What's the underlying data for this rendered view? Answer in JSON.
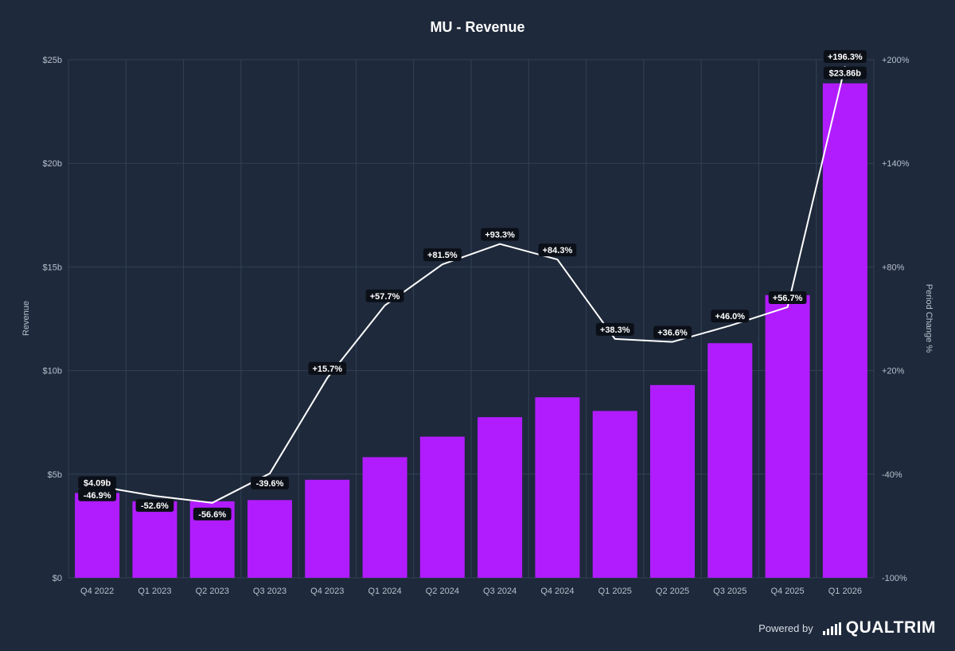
{
  "chart_data": {
    "type": "bar",
    "title": "MU - Revenue",
    "ylabel": "Revenue",
    "y2label": "Period Change %",
    "categories": [
      "Q4 2022",
      "Q1 2023",
      "Q2 2023",
      "Q3 2023",
      "Q4 2023",
      "Q1 2024",
      "Q2 2024",
      "Q3 2024",
      "Q4 2024",
      "Q1 2025",
      "Q2 2025",
      "Q3 2025",
      "Q4 2025",
      "Q1 2026"
    ],
    "series": [
      {
        "type": "bar",
        "color": "#b11cff",
        "unit": "billions USD",
        "values": [
          4.09,
          3.69,
          3.69,
          3.75,
          4.73,
          5.82,
          6.81,
          7.75,
          8.71,
          8.05,
          9.3,
          11.32,
          13.64,
          23.86
        ],
        "data_labels": {
          "0": "$4.09b",
          "13": "$23.86b"
        }
      },
      {
        "type": "line",
        "axis": "right",
        "color": "#ffffff",
        "unit": "percent",
        "values": [
          -46.9,
          -52.6,
          -56.6,
          -39.6,
          15.7,
          57.7,
          81.5,
          93.3,
          84.3,
          38.3,
          36.6,
          46.0,
          56.7,
          196.3
        ],
        "data_labels": [
          "-46.9%",
          "-52.6%",
          "-56.6%",
          "-39.6%",
          "+15.7%",
          "+57.7%",
          "+81.5%",
          "+93.3%",
          "+84.3%",
          "+38.3%",
          "+36.6%",
          "+46.0%",
          "+56.7%",
          "+196.3%"
        ]
      }
    ],
    "ylim": [
      0,
      25
    ],
    "y_ticks": [
      "$0",
      "$5b",
      "$10b",
      "$15b",
      "$20b",
      "$25b"
    ],
    "y2lim": [
      -100,
      200
    ],
    "y2_ticks": [
      "-100%",
      "-40%",
      "+20%",
      "+80%",
      "+140%",
      "+200%"
    ],
    "grid": true
  },
  "footer": {
    "powered_by": "Powered by",
    "brand": "QUALTRIM"
  }
}
